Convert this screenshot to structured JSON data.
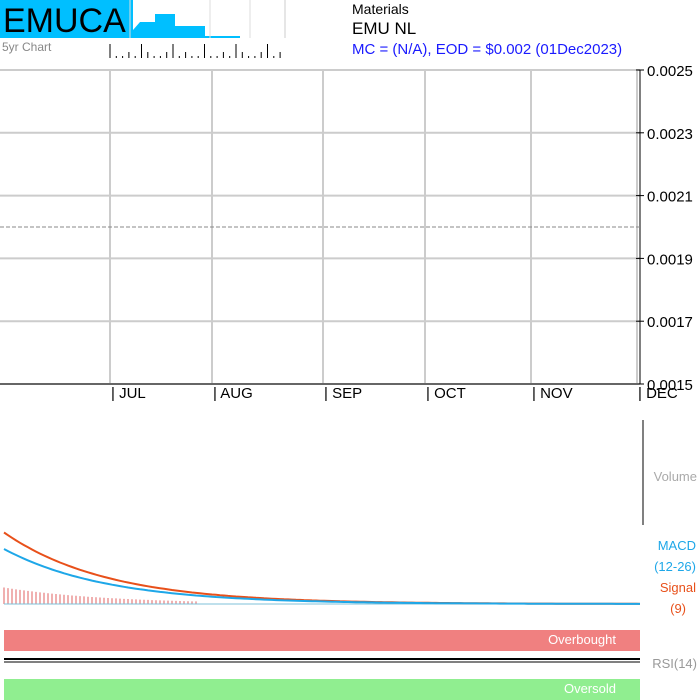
{
  "header": {
    "ticker": "EMUCA",
    "spark_label": "5yr Chart",
    "sector": "Materials",
    "company": "EMU NL",
    "summary": "MC = (N/A), EOD = $0.002 (01Dec2023)"
  },
  "colors": {
    "ticker_bg": "#00bfff",
    "spark_fill": "#00bfff",
    "summary_text": "#1a1aff",
    "macd_line": "#1ea7e8",
    "signal_line": "#e8501a",
    "histogram": "#e06060",
    "overbought_band": "#f08080",
    "oversold_band": "#90ee90",
    "grid": "#cccccc"
  },
  "chart_data": [
    {
      "type": "line",
      "title": "",
      "x_months": [
        "| JUL",
        "| AUG",
        "| SEP",
        "| OCT",
        "| NOV",
        "| DEC"
      ],
      "y_ticks": [
        "0.0025",
        "0.0023",
        "0.0021",
        "0.0019",
        "0.0017",
        "0.0015"
      ],
      "ylim": [
        0.0015,
        0.0025
      ],
      "reference_line": 0.002,
      "series": []
    },
    {
      "type": "bar",
      "label": "Volume",
      "values": []
    },
    {
      "type": "line",
      "labels": {
        "macd": "MACD",
        "macd_params": "(12-26)",
        "signal": "Signal",
        "signal_params": "(9)"
      },
      "series": [
        {
          "name": "MACD",
          "decay_start": 1.0,
          "decay_end": 0.0
        },
        {
          "name": "Signal",
          "decay_start": 1.3,
          "decay_end": 0.0
        }
      ]
    },
    {
      "type": "line",
      "label": "RSI(14)",
      "overbought_label": "Overbought",
      "oversold_label": "Oversold"
    }
  ]
}
